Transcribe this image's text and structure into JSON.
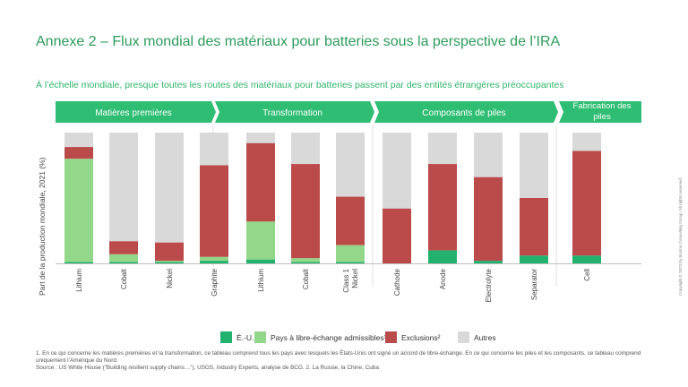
{
  "title": "Annexe 2 – Flux mondial des matériaux pour batteries sous la perspective de l’IRA",
  "subtitle": "À l’échelle mondiale, presque toutes les routes des matériaux pour batteries passent par des entités étrangères préoccupantes",
  "copyright": "Copyright © 2023 by Boston Consulting Group. All rights reserved.",
  "footnote_line1": "1. En ce qui concerne les matières premières et la transformation, ce tableau comprend tous les pays avec lesquels les États-Unis ont signé un accord de libre-échange. En ce qui concerne les piles et les composants, ce tableau comprend uniquement l’Amérique du Nord.",
  "footnote_line2": "Source : US White House (“Building resilient supply chains…”), USGS, Industry Experts, analyse de BCG. 2. La Russie, la Chine, Cuba",
  "colors": {
    "us": "#23b26d",
    "fta": "#93d88a",
    "excl": "#bb4a4a",
    "other": "#d9d9d9",
    "header": "#2ebd72"
  },
  "chart_data": {
    "type": "bar",
    "stacked": true,
    "ylabel": "Part de la production mondiale, 2021 (%)",
    "ylim": [
      0,
      100
    ],
    "groups": [
      {
        "label": "Matières premières",
        "categories": [
          "Lithium",
          "Cobalt",
          "Nickel",
          "Graphite"
        ]
      },
      {
        "label": "Transformation",
        "categories": [
          "Lithium",
          "Cobalt",
          "Class 1 Nickel"
        ]
      },
      {
        "label": "Composants de piles",
        "categories": [
          "Cathode",
          "Anode",
          "Electrolyte",
          "Separator"
        ]
      },
      {
        "label": "Fabrication des piles",
        "categories": [
          "Cell"
        ]
      }
    ],
    "categories": [
      "Lithium",
      "Cobalt",
      "Nickel",
      "Graphite",
      "Lithium",
      "Cobalt",
      "Class 1 Nickel",
      "Cathode",
      "Anode",
      "Electrolyte",
      "Separator",
      "Cell"
    ],
    "series": [
      {
        "name": "É.-U.",
        "values": [
          1,
          1,
          1,
          2,
          3,
          1,
          1,
          0,
          10,
          2,
          6,
          6
        ]
      },
      {
        "name": "Pays à libre-échange admissibles¹",
        "values": [
          79,
          6,
          1,
          3,
          29,
          3,
          13,
          0,
          0,
          0,
          0,
          0
        ]
      },
      {
        "name": "Exclusions²",
        "values": [
          9,
          10,
          14,
          70,
          60,
          72,
          37,
          42,
          66,
          64,
          44,
          80
        ]
      },
      {
        "name": "Autres",
        "values": [
          11,
          83,
          84,
          25,
          8,
          24,
          49,
          58,
          24,
          34,
          50,
          14
        ]
      }
    ]
  }
}
